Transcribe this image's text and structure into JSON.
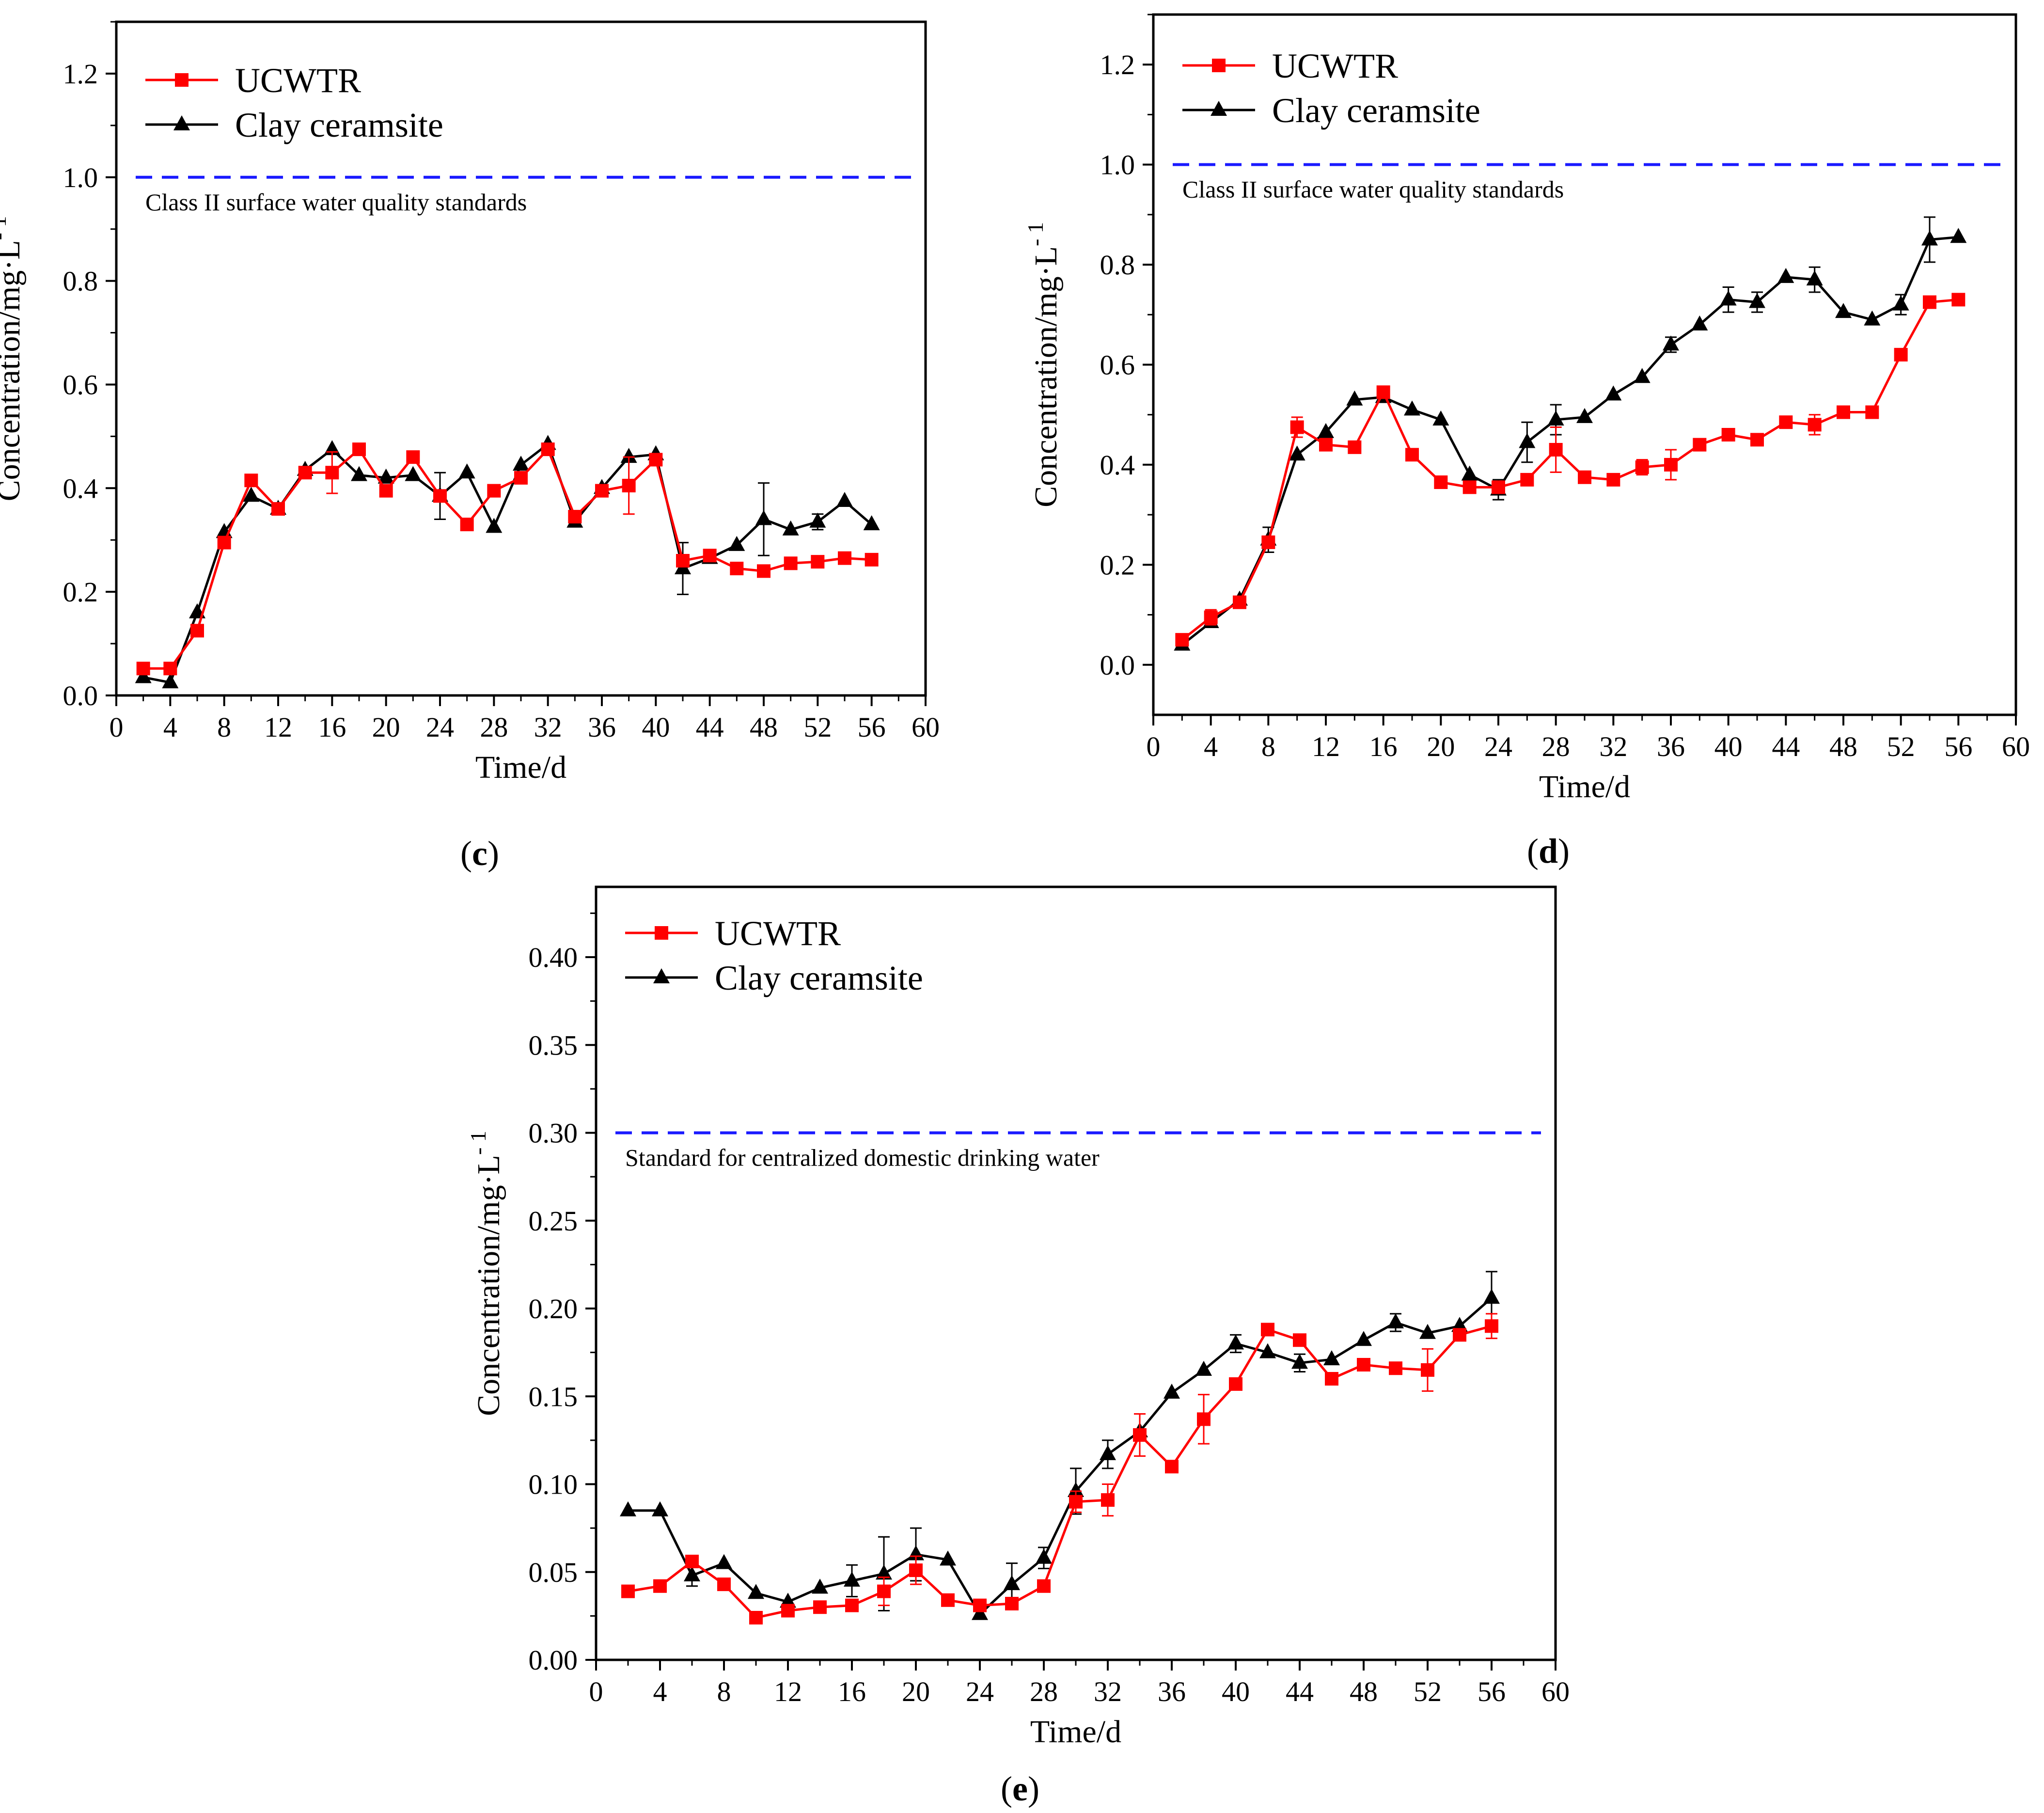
{
  "figure": {
    "panels_order": [
      "c",
      "d",
      "e"
    ]
  },
  "chart_data": [
    {
      "type": "line",
      "panel": "(c)",
      "panel_parts": {
        "open": "(",
        "letter": "c",
        "close": ")"
      },
      "xlabel": "Time/d",
      "ylabel": "Concentration/mg·L",
      "ylabel_sup": "- 1",
      "xlim": [
        0,
        60
      ],
      "ylim": [
        0,
        1.3
      ],
      "xticks": [
        0,
        4,
        8,
        12,
        16,
        20,
        24,
        28,
        32,
        36,
        40,
        44,
        48,
        52,
        56,
        60
      ],
      "yticks": [
        0.0,
        0.2,
        0.4,
        0.6,
        0.8,
        1.0,
        1.2
      ],
      "ytick_decimals": 1,
      "standard": {
        "value": 1.0,
        "label": "Class II surface water quality standards",
        "color": "#1a1aff"
      },
      "x": [
        2,
        4,
        6,
        8,
        10,
        12,
        14,
        16,
        18,
        20,
        22,
        24,
        26,
        28,
        30,
        32,
        34,
        36,
        38,
        40,
        42,
        44,
        46,
        48,
        50,
        52,
        54,
        56
      ],
      "series": [
        {
          "name": "UCWTR",
          "color": "#ff0000",
          "marker": "square",
          "values": [
            0.052,
            0.052,
            0.125,
            0.295,
            0.415,
            0.36,
            0.43,
            0.43,
            0.475,
            0.395,
            0.46,
            0.385,
            0.33,
            0.395,
            0.42,
            0.475,
            0.345,
            0.395,
            0.405,
            0.455,
            0.26,
            0.27,
            0.245,
            0.24,
            0.255,
            0.258,
            0.265,
            0.262
          ],
          "errors": [
            0,
            0,
            0,
            0,
            0,
            0,
            0,
            0.04,
            0,
            0,
            0,
            0,
            0,
            0,
            0,
            0,
            0,
            0,
            0.055,
            0,
            0,
            0,
            0,
            0,
            0,
            0,
            0,
            0
          ]
        },
        {
          "name": "Clay ceramsite",
          "color": "#000000",
          "marker": "triangle",
          "values": [
            0.035,
            0.025,
            0.16,
            0.315,
            0.385,
            0.36,
            0.435,
            0.475,
            0.425,
            0.42,
            0.425,
            0.385,
            0.43,
            0.325,
            0.445,
            0.485,
            0.335,
            0.4,
            0.46,
            0.465,
            0.245,
            0.265,
            0.29,
            0.34,
            0.32,
            0.335,
            0.375,
            0.33
          ],
          "errors": [
            0,
            0,
            0,
            0,
            0,
            0,
            0,
            0,
            0,
            0,
            0,
            0.045,
            0,
            0,
            0,
            0,
            0,
            0,
            0,
            0,
            0.05,
            0,
            0,
            0.07,
            0,
            0.015,
            0,
            0
          ]
        }
      ]
    },
    {
      "type": "line",
      "panel": "(d)",
      "panel_parts": {
        "open": "(",
        "letter": "d",
        "close": ")"
      },
      "xlabel": "Time/d",
      "ylabel": "Concentration/mg·L",
      "ylabel_sup": "- 1",
      "xlim": [
        0,
        60
      ],
      "ylim": [
        -0.1,
        1.3
      ],
      "xticks": [
        0,
        4,
        8,
        12,
        16,
        20,
        24,
        28,
        32,
        36,
        40,
        44,
        48,
        52,
        56,
        60
      ],
      "yticks": [
        0.0,
        0.2,
        0.4,
        0.6,
        0.8,
        1.0,
        1.2
      ],
      "ytick_decimals": 1,
      "standard": {
        "value": 1.0,
        "label": "Class II surface water quality standards",
        "color": "#1a1aff"
      },
      "x": [
        2,
        4,
        6,
        8,
        10,
        12,
        14,
        16,
        18,
        20,
        22,
        24,
        26,
        28,
        30,
        32,
        34,
        36,
        38,
        40,
        42,
        44,
        46,
        48,
        50,
        52,
        54,
        56
      ],
      "series": [
        {
          "name": "UCWTR",
          "color": "#ff0000",
          "marker": "square",
          "values": [
            0.05,
            0.095,
            0.125,
            0.245,
            0.475,
            0.44,
            0.435,
            0.545,
            0.42,
            0.365,
            0.355,
            0.355,
            0.37,
            0.43,
            0.375,
            0.37,
            0.395,
            0.4,
            0.44,
            0.46,
            0.45,
            0.485,
            0.48,
            0.505,
            0.505,
            0.62,
            0.725,
            0.73
          ],
          "errors": [
            0,
            0.015,
            0,
            0,
            0.02,
            0,
            0,
            0,
            0,
            0,
            0,
            0,
            0,
            0.045,
            0,
            0,
            0.015,
            0.03,
            0,
            0,
            0,
            0,
            0.02,
            0,
            0,
            0,
            0,
            0
          ]
        },
        {
          "name": "Clay ceramsite",
          "color": "#000000",
          "marker": "triangle",
          "values": [
            0.04,
            0.085,
            0.13,
            0.25,
            0.42,
            0.465,
            0.53,
            0.535,
            0.51,
            0.49,
            0.38,
            0.35,
            0.445,
            0.49,
            0.495,
            0.54,
            0.575,
            0.64,
            0.68,
            0.73,
            0.725,
            0.775,
            0.77,
            0.705,
            0.69,
            0.72,
            0.85,
            0.855
          ],
          "errors": [
            0,
            0,
            0,
            0.025,
            0,
            0,
            0,
            0,
            0,
            0,
            0,
            0.02,
            0.04,
            0.03,
            0,
            0,
            0,
            0.015,
            0,
            0.025,
            0.02,
            0,
            0.025,
            0,
            0,
            0.02,
            0.045,
            0
          ]
        }
      ]
    },
    {
      "type": "line",
      "panel": "(e)",
      "panel_parts": {
        "open": "(",
        "letter": "e",
        "close": ")"
      },
      "xlabel": "Time/d",
      "ylabel": "Concentration/mg·L",
      "ylabel_sup": "- 1",
      "xlim": [
        0,
        60
      ],
      "ylim": [
        0,
        0.44
      ],
      "xticks": [
        0,
        4,
        8,
        12,
        16,
        20,
        24,
        28,
        32,
        36,
        40,
        44,
        48,
        52,
        56,
        60
      ],
      "yticks": [
        0.0,
        0.05,
        0.1,
        0.15,
        0.2,
        0.25,
        0.3,
        0.35,
        0.4
      ],
      "ytick_decimals": 2,
      "standard": {
        "value": 0.3,
        "label": "Standard for centralized domestic drinking water",
        "color": "#1a1aff"
      },
      "x": [
        2,
        4,
        6,
        8,
        10,
        12,
        14,
        16,
        18,
        20,
        22,
        24,
        26,
        28,
        30,
        32,
        34,
        36,
        38,
        40,
        42,
        44,
        46,
        48,
        50,
        52,
        54,
        56
      ],
      "series": [
        {
          "name": "UCWTR",
          "color": "#ff0000",
          "marker": "square",
          "values": [
            0.039,
            0.042,
            0.056,
            0.043,
            0.024,
            0.028,
            0.03,
            0.031,
            0.039,
            0.051,
            0.034,
            0.031,
            0.032,
            0.042,
            0.09,
            0.091,
            0.128,
            0.11,
            0.137,
            0.157,
            0.188,
            0.182,
            0.16,
            0.168,
            0.166,
            0.165,
            0.185,
            0.19
          ],
          "errors": [
            0,
            0,
            0,
            0,
            0,
            0,
            0,
            0,
            0.008,
            0.008,
            0,
            0,
            0,
            0,
            0.006,
            0.009,
            0.012,
            0,
            0.014,
            0,
            0,
            0,
            0,
            0,
            0,
            0.012,
            0,
            0.007
          ]
        },
        {
          "name": "Clay ceramsite",
          "color": "#000000",
          "marker": "triangle",
          "values": [
            0.085,
            0.085,
            0.048,
            0.055,
            0.038,
            0.033,
            0.041,
            0.045,
            0.049,
            0.06,
            0.057,
            0.026,
            0.043,
            0.058,
            0.096,
            0.117,
            0.13,
            0.152,
            0.165,
            0.18,
            0.175,
            0.169,
            0.171,
            0.182,
            0.192,
            0.186,
            0.19,
            0.206
          ],
          "errors": [
            0,
            0,
            0.006,
            0,
            0,
            0,
            0,
            0.009,
            0.021,
            0.015,
            0,
            0,
            0.012,
            0.006,
            0.013,
            0.008,
            0,
            0,
            0,
            0.005,
            0,
            0.005,
            0,
            0,
            0.005,
            0,
            0,
            0.015
          ]
        }
      ]
    }
  ]
}
